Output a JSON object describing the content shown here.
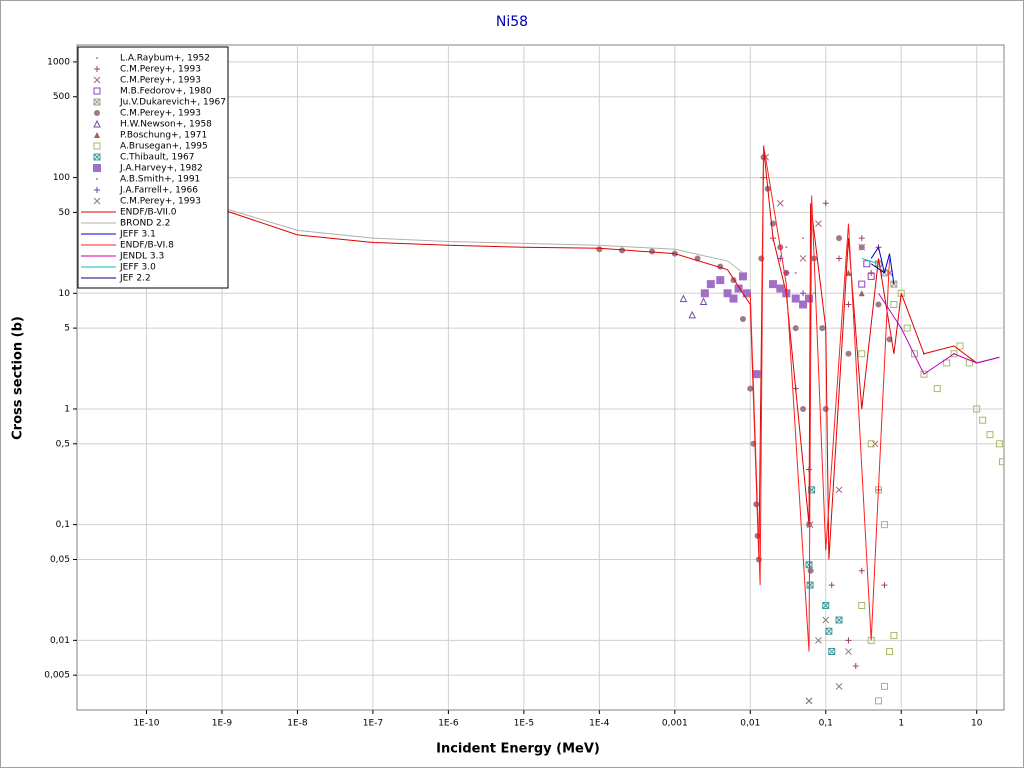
{
  "chart_data": {
    "type": "scatter",
    "title": "Ni58",
    "x_label": "Incident Energy (MeV)",
    "y_label": "Cross section (b)",
    "log_x": true,
    "log_y": true,
    "grid": true,
    "legend": "top-left",
    "xlim": [
      1.2e-11,
      23
    ],
    "ylim": [
      0.0025,
      1400
    ],
    "xticks": [
      {
        "value": 1e-10,
        "label": "1E-10"
      },
      {
        "value": 1e-09,
        "label": "1E-9"
      },
      {
        "value": 1e-08,
        "label": "1E-8"
      },
      {
        "value": 1e-07,
        "label": "1E-7"
      },
      {
        "value": 1e-06,
        "label": "1E-6"
      },
      {
        "value": 1e-05,
        "label": "1E-5"
      },
      {
        "value": 0.0001,
        "label": "1E-4"
      },
      {
        "value": 0.001,
        "label": "0,001"
      },
      {
        "value": 0.01,
        "label": "0,01"
      },
      {
        "value": 0.1,
        "label": "0,1"
      },
      1,
      10
    ],
    "yticks": [
      1000,
      500,
      100,
      50,
      10,
      5,
      1,
      {
        "value": 0.5,
        "label": "0,5"
      },
      {
        "value": 0.1,
        "label": "0,1"
      },
      {
        "value": 0.05,
        "label": "0,05"
      },
      {
        "value": 0.01,
        "label": "0,01"
      },
      {
        "value": 0.005,
        "label": "0,005"
      }
    ],
    "series": [
      {
        "name": "L.A.Raybum+, 1952",
        "color": "#909090",
        "marker": "dot",
        "x": [
          0.02,
          0.03,
          0.04,
          0.05,
          0.07
        ],
        "values": [
          40,
          25,
          15,
          30,
          10
        ]
      },
      {
        "name": "C.M.Perey+, 1993",
        "color": "#a04060",
        "marker": "plus",
        "x": [
          0.015,
          0.02,
          0.04,
          0.06,
          0.1,
          0.15,
          0.2,
          0.3,
          0.4,
          0.5,
          0.2,
          0.3,
          0.12,
          0.25,
          0.5,
          0.6
        ],
        "values": [
          100,
          30,
          1.5,
          0.3,
          60,
          20,
          8,
          30,
          15,
          25,
          0.01,
          0.04,
          0.03,
          0.006,
          0.2,
          0.03
        ]
      },
      {
        "name": "C.M.Perey+, 1993",
        "color": "#b06080",
        "marker": "cross",
        "x": [
          0.016,
          0.025,
          0.05,
          0.062,
          0.08,
          0.15,
          0.3,
          0.45,
          0.7,
          0.06
        ],
        "values": [
          150,
          60,
          20,
          0.1,
          40,
          0.2,
          25,
          0.5,
          15,
          0.003
        ]
      },
      {
        "name": "M.B.Fedorov+, 1980",
        "color": "#9040c0",
        "marker": "square",
        "x": [
          0.3,
          0.35,
          0.4
        ],
        "values": [
          12,
          18,
          14
        ]
      },
      {
        "name": "Ju.V.Dukarevich+, 1967",
        "color": "#a0a080",
        "marker": "square-x",
        "x": [
          0.5,
          0.6,
          0.8
        ],
        "values": [
          18,
          15,
          12
        ]
      },
      {
        "name": "C.M.Perey+, 1993",
        "color": "#a07888",
        "marker": "circle",
        "x": [
          0.0001,
          0.0002,
          0.0005,
          0.001,
          0.002,
          0.004,
          0.006,
          0.008,
          0.01,
          0.011,
          0.012,
          0.013,
          0.0125,
          0.014,
          0.015,
          0.017,
          0.02,
          0.025,
          0.03,
          0.04,
          0.05,
          0.06,
          0.063,
          0.07,
          0.09,
          0.1,
          0.15,
          0.2,
          0.3,
          0.5,
          0.7
        ],
        "values": [
          24,
          23.5,
          23,
          22,
          20,
          17,
          13,
          6,
          1.5,
          0.5,
          0.15,
          0.05,
          0.08,
          20,
          150,
          80,
          40,
          25,
          15,
          5,
          1,
          0.1,
          0.04,
          20,
          5,
          1,
          30,
          3,
          25,
          8,
          4
        ]
      },
      {
        "name": "H.W.Newson+, 1958",
        "color": "#7050a0",
        "marker": "triangle",
        "x": [
          0.0013,
          0.0017,
          0.0024
        ],
        "values": [
          9,
          6.5,
          8.5
        ]
      },
      {
        "name": "P.Boschung+, 1971",
        "color": "#a06060",
        "marker": "triangle-filled",
        "x": [
          0.2,
          0.3
        ],
        "values": [
          15,
          10
        ]
      },
      {
        "name": "A.Brusegan+, 1995",
        "color": "#a8b868",
        "marker": "square",
        "x": [
          0.3,
          0.4,
          0.5,
          0.6,
          0.8,
          1,
          1.2,
          1.5,
          2,
          3,
          4,
          5,
          6,
          8,
          10,
          12,
          15,
          20,
          22,
          0.3,
          0.4,
          0.6,
          0.7,
          0.8,
          0.5
        ],
        "values": [
          3,
          0.5,
          0.2,
          0.1,
          8,
          10,
          5,
          3,
          2,
          1.5,
          2.5,
          3,
          3.5,
          2.5,
          1,
          0.8,
          0.6,
          0.5,
          0.35,
          0.02,
          0.01,
          0.004,
          0.008,
          0.011,
          0.003
        ]
      },
      {
        "name": "C.Thibault, 1967",
        "color": "#409898",
        "marker": "square-x",
        "x": [
          0.06,
          0.062,
          0.1,
          0.11,
          0.12,
          0.15,
          0.065
        ],
        "values": [
          0.045,
          0.03,
          0.02,
          0.012,
          0.008,
          0.015,
          0.2
        ]
      },
      {
        "name": "J.A.Harvey+, 1982",
        "color": "#a070c8",
        "marker": "square-filled",
        "x": [
          0.0025,
          0.003,
          0.004,
          0.005,
          0.006,
          0.007,
          0.008,
          0.009,
          0.012,
          0.02,
          0.025,
          0.03,
          0.04,
          0.05,
          0.06
        ],
        "values": [
          10,
          12,
          13,
          10,
          9,
          11,
          14,
          10,
          2,
          12,
          11,
          10,
          9,
          8,
          9
        ]
      },
      {
        "name": "A.B.Smith+, 1991",
        "color": "#909090",
        "marker": "dot",
        "x": [
          1,
          2,
          5
        ],
        "values": [
          5,
          3,
          3
        ]
      },
      {
        "name": "J.A.Farrell+, 1966",
        "color": "#8040a0",
        "marker": "plus",
        "x": [
          0.025,
          0.03,
          0.05
        ],
        "values": [
          20,
          15,
          10
        ]
      },
      {
        "name": "C.M.Perey+, 1993",
        "color": "#808080",
        "marker": "cross",
        "x": [
          0.06,
          0.08,
          0.1,
          0.15,
          0.2
        ],
        "values": [
          0.003,
          0.01,
          0.015,
          0.004,
          0.008
        ]
      },
      {
        "name": "ENDF/B-VII.0",
        "color": "#e00000",
        "marker": "line",
        "x": [
          1e-09,
          1e-08,
          1e-07,
          1e-06,
          1e-05,
          0.0001,
          0.001,
          0.005,
          0.01,
          0.013,
          0.015,
          0.02,
          0.03,
          0.06,
          0.063,
          0.1,
          0.11,
          0.2,
          0.3,
          0.5,
          0.8,
          1,
          2,
          5,
          10,
          20
        ],
        "values": [
          53,
          32,
          27.5,
          26,
          25,
          24.5,
          22,
          16,
          8,
          0.05,
          180,
          30,
          10,
          0.1,
          60,
          5,
          0.05,
          30,
          1,
          20,
          3,
          10,
          3,
          3.5,
          2.5,
          2.8
        ]
      },
      {
        "name": "BROND 2.2",
        "color": "#b0b0b0",
        "marker": "line",
        "x": [
          1e-09,
          1e-08,
          1e-07,
          1e-06,
          1e-05,
          0.0001,
          0.001,
          0.005,
          0.008
        ],
        "values": [
          55,
          35,
          30,
          28,
          27,
          26,
          24,
          19,
          15
        ]
      },
      {
        "name": "JEFF 3.1",
        "color": "#0000d0",
        "marker": "line",
        "x": [
          0.4,
          0.5,
          0.6,
          0.7,
          0.8
        ],
        "values": [
          20,
          25,
          15,
          22,
          12
        ]
      },
      {
        "name": "ENDF/B-VI.8",
        "color": "#ff2020",
        "marker": "line",
        "x": [
          0.01,
          0.0135,
          0.015,
          0.03,
          0.06,
          0.065,
          0.1,
          0.2,
          0.4,
          0.7
        ],
        "values": [
          10,
          0.03,
          190,
          12,
          0.008,
          70,
          0.06,
          40,
          0.01,
          20
        ]
      },
      {
        "name": "JENDL 3.3",
        "color": "#c000c0",
        "marker": "line",
        "x": [
          0.5,
          1,
          2,
          5,
          10,
          20
        ],
        "values": [
          10,
          5,
          2,
          3,
          2.5,
          2.8
        ]
      },
      {
        "name": "JEFF 3.0",
        "color": "#00c0c0",
        "marker": "line",
        "x": [
          0.3,
          0.5
        ],
        "values": [
          20,
          18
        ]
      },
      {
        "name": "JEF 2.2",
        "color": "#000080",
        "marker": "line",
        "x": [
          0.4,
          0.6
        ],
        "values": [
          18,
          15
        ]
      }
    ]
  }
}
